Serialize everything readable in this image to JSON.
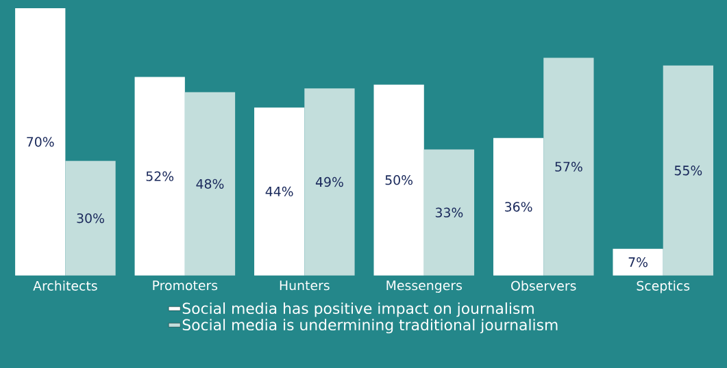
{
  "chart_data": {
    "type": "bar",
    "categories": [
      "Architects",
      "Promoters",
      "Hunters",
      "Messengers",
      "Observers",
      "Sceptics"
    ],
    "series": [
      {
        "name": "Social media has positive impact on journalism",
        "color": "#ffffff",
        "values": [
          70,
          52,
          44,
          50,
          36,
          7
        ],
        "value_labels": [
          "70%",
          "52%",
          "44%",
          "50%",
          "36%",
          "7%"
        ]
      },
      {
        "name": "Social media is undermining traditional journalism",
        "color": "#c3dedc",
        "values": [
          30,
          48,
          49,
          33,
          57,
          55
        ],
        "value_labels": [
          "30%",
          "48%",
          "49%",
          "33%",
          "57%",
          "55%"
        ]
      }
    ],
    "legend": "bottom"
  }
}
